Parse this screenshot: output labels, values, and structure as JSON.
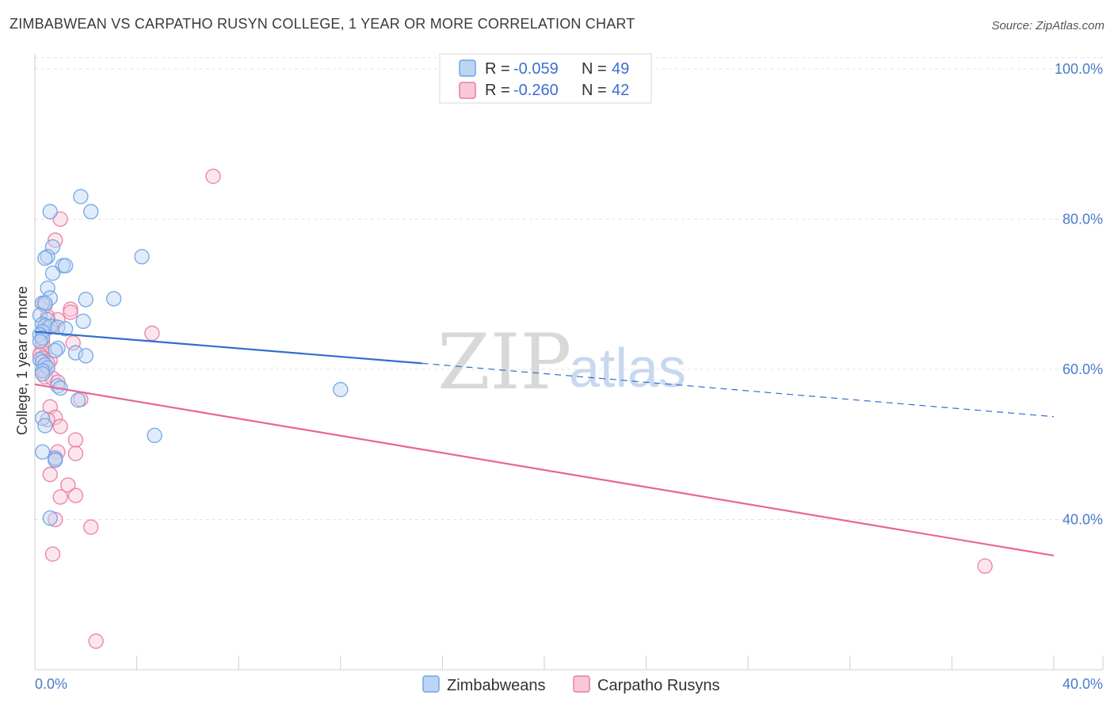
{
  "title": "ZIMBABWEAN VS CARPATHO RUSYN COLLEGE, 1 YEAR OR MORE CORRELATION CHART",
  "source": "Source: ZipAtlas.com",
  "watermark": {
    "zip": "ZIP",
    "atlas": "atlas"
  },
  "colors": {
    "blue": "#6fa3e6",
    "blue_fill": "#bcd5f3",
    "pink": "#ec7aa1",
    "pink_fill": "#f8c8d7",
    "blue_line": "#2f6fcf",
    "pink_line": "#e8659a"
  },
  "chart_data": {
    "type": "scatter",
    "title": "ZIMBABWEAN VS CARPATHO RUSYN COLLEGE, 1 YEAR OR MORE CORRELATION CHART",
    "xlabel": "",
    "ylabel": "College, 1 year or more",
    "xlim": [
      0,
      40
    ],
    "ylim": [
      20,
      102
    ],
    "x_tick_labels": [
      "0.0%",
      "40.0%"
    ],
    "y_ticks": [
      40,
      60,
      80,
      100
    ],
    "y_tick_labels": [
      "40.0%",
      "60.0%",
      "80.0%",
      "100.0%"
    ],
    "legend": [
      {
        "name": "Zimbabweans",
        "r_label": "R =",
        "r": "-0.059",
        "n_label": "N =",
        "n": "49"
      },
      {
        "name": "Carpatho Rusyns",
        "r_label": "R =",
        "r": "-0.260",
        "n_label": "N =",
        "n": "42"
      }
    ],
    "series": [
      {
        "name": "Zimbabweans",
        "trend": {
          "x0": 0,
          "y0": 65.0,
          "x1": 15.2,
          "y1": 60.8,
          "dash_to_x": 40,
          "dash_to_y": 53.7
        },
        "points": [
          [
            1.8,
            83.0
          ],
          [
            0.6,
            81.0
          ],
          [
            2.2,
            81.0
          ],
          [
            0.7,
            76.3
          ],
          [
            0.5,
            75.0
          ],
          [
            0.4,
            74.8
          ],
          [
            4.2,
            75.0
          ],
          [
            1.1,
            73.8
          ],
          [
            1.2,
            73.8
          ],
          [
            0.7,
            72.8
          ],
          [
            0.5,
            70.8
          ],
          [
            0.6,
            69.5
          ],
          [
            2.0,
            69.3
          ],
          [
            3.1,
            69.4
          ],
          [
            0.3,
            68.8
          ],
          [
            0.4,
            68.8
          ],
          [
            0.2,
            67.2
          ],
          [
            0.5,
            66.6
          ],
          [
            0.3,
            66.0
          ],
          [
            1.9,
            66.4
          ],
          [
            0.4,
            65.8
          ],
          [
            0.6,
            65.7
          ],
          [
            0.9,
            65.6
          ],
          [
            1.2,
            65.4
          ],
          [
            0.3,
            65.0
          ],
          [
            0.2,
            64.6
          ],
          [
            0.3,
            64.2
          ],
          [
            0.2,
            63.7
          ],
          [
            0.9,
            62.8
          ],
          [
            0.8,
            62.5
          ],
          [
            1.6,
            62.2
          ],
          [
            2.0,
            61.8
          ],
          [
            0.2,
            61.3
          ],
          [
            0.3,
            61.0
          ],
          [
            0.4,
            60.6
          ],
          [
            0.5,
            60.2
          ],
          [
            0.3,
            59.8
          ],
          [
            0.3,
            59.4
          ],
          [
            0.9,
            57.8
          ],
          [
            1.0,
            57.5
          ],
          [
            1.7,
            55.9
          ],
          [
            12.0,
            57.3
          ],
          [
            0.3,
            53.5
          ],
          [
            0.4,
            52.5
          ],
          [
            4.7,
            51.2
          ],
          [
            0.3,
            49.0
          ],
          [
            0.8,
            48.2
          ],
          [
            0.8,
            47.9
          ],
          [
            0.6,
            40.2
          ]
        ]
      },
      {
        "name": "Carpatho Rusyns",
        "trend": {
          "x0": 0,
          "y0": 58.0,
          "x1": 40,
          "y1": 35.2
        },
        "points": [
          [
            7.0,
            85.7
          ],
          [
            1.0,
            80.0
          ],
          [
            0.8,
            77.2
          ],
          [
            0.3,
            68.8
          ],
          [
            0.4,
            68.5
          ],
          [
            1.4,
            68.0
          ],
          [
            1.4,
            67.6
          ],
          [
            0.5,
            67.0
          ],
          [
            0.9,
            66.6
          ],
          [
            0.7,
            65.8
          ],
          [
            0.5,
            65.5
          ],
          [
            4.6,
            64.8
          ],
          [
            0.3,
            64.0
          ],
          [
            0.3,
            63.5
          ],
          [
            1.5,
            63.5
          ],
          [
            0.3,
            62.3
          ],
          [
            0.2,
            62.0
          ],
          [
            0.3,
            61.5
          ],
          [
            0.6,
            61.2
          ],
          [
            0.5,
            60.8
          ],
          [
            0.4,
            59.8
          ],
          [
            0.4,
            59.0
          ],
          [
            0.7,
            58.8
          ],
          [
            0.9,
            58.3
          ],
          [
            1.8,
            56.0
          ],
          [
            0.6,
            55.0
          ],
          [
            0.8,
            53.6
          ],
          [
            0.5,
            53.3
          ],
          [
            1.0,
            52.4
          ],
          [
            1.6,
            50.6
          ],
          [
            0.9,
            49.0
          ],
          [
            1.6,
            48.8
          ],
          [
            0.8,
            48.0
          ],
          [
            0.6,
            46.0
          ],
          [
            1.3,
            44.6
          ],
          [
            1.0,
            43.0
          ],
          [
            1.6,
            43.2
          ],
          [
            0.8,
            40.0
          ],
          [
            2.2,
            39.0
          ],
          [
            0.7,
            35.4
          ],
          [
            2.4,
            23.8
          ],
          [
            37.3,
            33.8
          ]
        ]
      }
    ]
  }
}
